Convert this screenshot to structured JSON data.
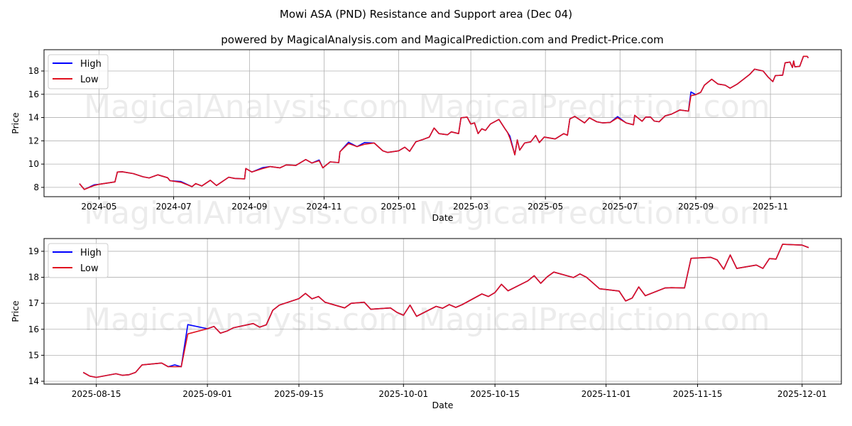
{
  "title": "Mowi ASA (PND) Resistance and Support area (Dec 04)",
  "subtitle": "powered by MagicalAnalysis.com and MagicalPrediction.com and Predict-Price.com",
  "watermarks": [
    "MagicalAnalysis.com",
    "MagicalPrediction.com"
  ],
  "colors": {
    "high": "#0000ff",
    "low": "#e0101e"
  },
  "chart_data": [
    {
      "type": "line",
      "xlabel": "Date",
      "ylabel": "Price",
      "xlim": [
        "2024-03-17",
        "2025-12-29"
      ],
      "ylim": [
        7.2,
        19.83
      ],
      "grid": true,
      "legend": {
        "placement": "top-left",
        "entries": [
          "High",
          "Low"
        ]
      },
      "xticks": [
        "2024-05",
        "2024-07",
        "2024-09",
        "2024-11",
        "2025-01",
        "2025-03",
        "2025-05",
        "2025-07",
        "2025-09",
        "2025-11"
      ],
      "xtick_dates": [
        "2024-05-01",
        "2024-07-01",
        "2024-09-01",
        "2024-11-01",
        "2025-01-01",
        "2025-03-01",
        "2025-05-01",
        "2025-07-01",
        "2025-09-01",
        "2025-11-01"
      ],
      "yticks": [
        8,
        10,
        12,
        14,
        16,
        18
      ],
      "low": [
        [
          "2024-04-15",
          8.32
        ],
        [
          "2024-04-19",
          7.82
        ],
        [
          "2024-04-27",
          8.16
        ],
        [
          "2024-05-01",
          8.26
        ],
        [
          "2024-05-14",
          8.47
        ],
        [
          "2024-05-16",
          9.32
        ],
        [
          "2024-05-20",
          9.34
        ],
        [
          "2024-05-29",
          9.18
        ],
        [
          "2024-06-06",
          8.91
        ],
        [
          "2024-06-11",
          8.81
        ],
        [
          "2024-06-18",
          9.08
        ],
        [
          "2024-06-26",
          8.83
        ],
        [
          "2024-06-28",
          8.57
        ],
        [
          "2024-07-07",
          8.43
        ],
        [
          "2024-07-16",
          8.06
        ],
        [
          "2024-07-19",
          8.32
        ],
        [
          "2024-07-24",
          8.12
        ],
        [
          "2024-07-31",
          8.61
        ],
        [
          "2024-08-05",
          8.16
        ],
        [
          "2024-08-15",
          8.87
        ],
        [
          "2024-08-20",
          8.77
        ],
        [
          "2024-08-28",
          8.73
        ],
        [
          "2024-08-29",
          9.62
        ],
        [
          "2024-09-03",
          9.32
        ],
        [
          "2024-09-12",
          9.62
        ],
        [
          "2024-09-18",
          9.79
        ],
        [
          "2024-09-26",
          9.68
        ],
        [
          "2024-10-01",
          9.93
        ],
        [
          "2024-10-09",
          9.89
        ],
        [
          "2024-10-17",
          10.39
        ],
        [
          "2024-10-22",
          10.09
        ],
        [
          "2024-10-28",
          10.29
        ],
        [
          "2024-10-31",
          9.68
        ],
        [
          "2024-11-06",
          10.19
        ],
        [
          "2024-11-13",
          10.13
        ],
        [
          "2024-11-14",
          11.06
        ],
        [
          "2024-11-21",
          11.77
        ],
        [
          "2024-11-28",
          11.5
        ],
        [
          "2024-12-04",
          11.7
        ],
        [
          "2024-12-12",
          11.81
        ],
        [
          "2024-12-19",
          11.14
        ],
        [
          "2024-12-23",
          11.0
        ],
        [
          "2025-01-01",
          11.14
        ],
        [
          "2025-01-06",
          11.45
        ],
        [
          "2025-01-10",
          11.1
        ],
        [
          "2025-01-15",
          11.91
        ],
        [
          "2025-01-21",
          12.12
        ],
        [
          "2025-01-26",
          12.32
        ],
        [
          "2025-01-30",
          13.1
        ],
        [
          "2025-02-03",
          12.62
        ],
        [
          "2025-02-10",
          12.52
        ],
        [
          "2025-02-13",
          12.77
        ],
        [
          "2025-02-19",
          12.62
        ],
        [
          "2025-02-21",
          13.98
        ],
        [
          "2025-02-26",
          14.04
        ],
        [
          "2025-03-01",
          13.44
        ],
        [
          "2025-03-04",
          13.54
        ],
        [
          "2025-03-07",
          12.62
        ],
        [
          "2025-03-10",
          13.03
        ],
        [
          "2025-03-13",
          12.89
        ],
        [
          "2025-03-17",
          13.44
        ],
        [
          "2025-03-24",
          13.84
        ],
        [
          "2025-03-29",
          13.03
        ],
        [
          "2025-03-31",
          12.73
        ],
        [
          "2025-04-02",
          12.22
        ],
        [
          "2025-04-06",
          10.8
        ],
        [
          "2025-04-08",
          12.08
        ],
        [
          "2025-04-10",
          11.2
        ],
        [
          "2025-04-14",
          11.81
        ],
        [
          "2025-04-19",
          11.91
        ],
        [
          "2025-04-23",
          12.46
        ],
        [
          "2025-04-26",
          11.85
        ],
        [
          "2025-04-30",
          12.32
        ],
        [
          "2025-05-09",
          12.16
        ],
        [
          "2025-05-16",
          12.62
        ],
        [
          "2025-05-19",
          12.48
        ],
        [
          "2025-05-21",
          13.88
        ],
        [
          "2025-05-25",
          14.1
        ],
        [
          "2025-06-02",
          13.54
        ],
        [
          "2025-06-06",
          13.98
        ],
        [
          "2025-06-12",
          13.64
        ],
        [
          "2025-06-17",
          13.54
        ],
        [
          "2025-06-23",
          13.58
        ],
        [
          "2025-06-29",
          13.98
        ],
        [
          "2025-07-06",
          13.54
        ],
        [
          "2025-07-12",
          13.38
        ],
        [
          "2025-07-13",
          14.19
        ],
        [
          "2025-07-19",
          13.68
        ],
        [
          "2025-07-22",
          14.04
        ],
        [
          "2025-07-26",
          14.04
        ],
        [
          "2025-07-29",
          13.7
        ],
        [
          "2025-08-02",
          13.64
        ],
        [
          "2025-08-07",
          14.15
        ],
        [
          "2025-08-12",
          14.29
        ],
        [
          "2025-08-19",
          14.65
        ],
        [
          "2025-08-26",
          14.55
        ],
        [
          "2025-08-28",
          15.87
        ],
        [
          "2025-09-01",
          15.97
        ],
        [
          "2025-09-05",
          16.17
        ],
        [
          "2025-09-08",
          16.78
        ],
        [
          "2025-09-14",
          17.29
        ],
        [
          "2025-09-19",
          16.88
        ],
        [
          "2025-09-25",
          16.78
        ],
        [
          "2025-09-29",
          16.52
        ],
        [
          "2025-10-05",
          16.88
        ],
        [
          "2025-10-10",
          17.29
        ],
        [
          "2025-10-15",
          17.7
        ],
        [
          "2025-10-19",
          18.16
        ],
        [
          "2025-10-26",
          18.0
        ],
        [
          "2025-10-30",
          17.49
        ],
        [
          "2025-11-03",
          17.09
        ],
        [
          "2025-11-05",
          17.6
        ],
        [
          "2025-11-11",
          17.64
        ],
        [
          "2025-11-13",
          18.71
        ],
        [
          "2025-11-17",
          18.77
        ],
        [
          "2025-11-19",
          18.3
        ],
        [
          "2025-11-20",
          18.86
        ],
        [
          "2025-11-21",
          18.36
        ],
        [
          "2025-11-25",
          18.4
        ],
        [
          "2025-11-28",
          19.26
        ],
        [
          "2025-12-01",
          19.26
        ],
        [
          "2025-12-02",
          19.12
        ]
      ],
      "high_overrides": {
        "2024-04-27": 8.22,
        "2024-07-07": 8.5,
        "2024-09-12": 9.7,
        "2024-10-28": 10.35,
        "2024-11-21": 11.88,
        "2024-12-04": 11.85,
        "2025-04-02": 12.4,
        "2025-06-29": 14.08,
        "2025-08-28": 16.2
      }
    },
    {
      "type": "line",
      "xlabel": "Date",
      "ylabel": "Price",
      "xlim": [
        "2025-08-07",
        "2025-12-07"
      ],
      "ylim": [
        13.89,
        19.49
      ],
      "grid": true,
      "legend": {
        "placement": "top-left",
        "entries": [
          "High",
          "Low"
        ]
      },
      "xticks": [
        "2025-08-15",
        "2025-09-01",
        "2025-09-15",
        "2025-10-01",
        "2025-10-15",
        "2025-11-01",
        "2025-11-15",
        "2025-12-01"
      ],
      "xtick_dates": [
        "2025-08-15",
        "2025-09-01",
        "2025-09-15",
        "2025-10-01",
        "2025-10-15",
        "2025-11-01",
        "2025-11-15",
        "2025-12-01"
      ],
      "yticks": [
        14,
        15,
        16,
        17,
        18,
        19
      ],
      "low": [
        [
          "2025-08-13",
          14.34
        ],
        [
          "2025-08-14",
          14.2
        ],
        [
          "2025-08-15",
          14.15
        ],
        [
          "2025-08-18",
          14.29
        ],
        [
          "2025-08-19",
          14.23
        ],
        [
          "2025-08-20",
          14.25
        ],
        [
          "2025-08-21",
          14.34
        ],
        [
          "2025-08-22",
          14.63
        ],
        [
          "2025-08-25",
          14.7
        ],
        [
          "2025-08-26",
          14.56
        ],
        [
          "2025-08-27",
          14.56
        ],
        [
          "2025-08-28",
          14.56
        ],
        [
          "2025-08-29",
          15.82
        ],
        [
          "2025-09-01",
          16.02
        ],
        [
          "2025-09-02",
          16.11
        ],
        [
          "2025-09-03",
          15.85
        ],
        [
          "2025-09-04",
          15.93
        ],
        [
          "2025-09-05",
          16.06
        ],
        [
          "2025-09-08",
          16.22
        ],
        [
          "2025-09-09",
          16.08
        ],
        [
          "2025-09-10",
          16.17
        ],
        [
          "2025-09-11",
          16.73
        ],
        [
          "2025-09-12",
          16.93
        ],
        [
          "2025-09-15",
          17.18
        ],
        [
          "2025-09-16",
          17.38
        ],
        [
          "2025-09-17",
          17.17
        ],
        [
          "2025-09-18",
          17.26
        ],
        [
          "2025-09-19",
          17.04
        ],
        [
          "2025-09-22",
          16.82
        ],
        [
          "2025-09-23",
          17.0
        ],
        [
          "2025-09-25",
          17.04
        ],
        [
          "2025-09-26",
          16.77
        ],
        [
          "2025-09-29",
          16.82
        ],
        [
          "2025-09-30",
          16.65
        ],
        [
          "2025-10-01",
          16.54
        ],
        [
          "2025-10-02",
          16.93
        ],
        [
          "2025-10-03",
          16.5
        ],
        [
          "2025-10-06",
          16.88
        ],
        [
          "2025-10-07",
          16.81
        ],
        [
          "2025-10-08",
          16.95
        ],
        [
          "2025-10-09",
          16.84
        ],
        [
          "2025-10-10",
          16.95
        ],
        [
          "2025-10-13",
          17.36
        ],
        [
          "2025-10-14",
          17.26
        ],
        [
          "2025-10-15",
          17.41
        ],
        [
          "2025-10-16",
          17.73
        ],
        [
          "2025-10-17",
          17.48
        ],
        [
          "2025-10-20",
          17.86
        ],
        [
          "2025-10-21",
          18.06
        ],
        [
          "2025-10-22",
          17.77
        ],
        [
          "2025-10-23",
          18.02
        ],
        [
          "2025-10-24",
          18.2
        ],
        [
          "2025-10-27",
          17.99
        ],
        [
          "2025-10-28",
          18.13
        ],
        [
          "2025-10-29",
          18.0
        ],
        [
          "2025-10-31",
          17.56
        ],
        [
          "2025-11-03",
          17.47
        ],
        [
          "2025-11-04",
          17.09
        ],
        [
          "2025-11-05",
          17.2
        ],
        [
          "2025-11-06",
          17.63
        ],
        [
          "2025-11-07",
          17.29
        ],
        [
          "2025-11-10",
          17.59
        ],
        [
          "2025-11-11",
          17.6
        ],
        [
          "2025-11-13",
          17.59
        ],
        [
          "2025-11-14",
          18.73
        ],
        [
          "2025-11-17",
          18.77
        ],
        [
          "2025-11-18",
          18.67
        ],
        [
          "2025-11-19",
          18.31
        ],
        [
          "2025-11-20",
          18.86
        ],
        [
          "2025-11-21",
          18.34
        ],
        [
          "2025-11-24",
          18.47
        ],
        [
          "2025-11-25",
          18.34
        ],
        [
          "2025-11-26",
          18.72
        ],
        [
          "2025-11-27",
          18.7
        ],
        [
          "2025-11-28",
          19.27
        ],
        [
          "2025-12-01",
          19.24
        ],
        [
          "2025-12-02",
          19.14
        ]
      ],
      "high_overrides": {
        "2025-08-27": 14.63,
        "2025-08-29": 16.18
      }
    }
  ]
}
